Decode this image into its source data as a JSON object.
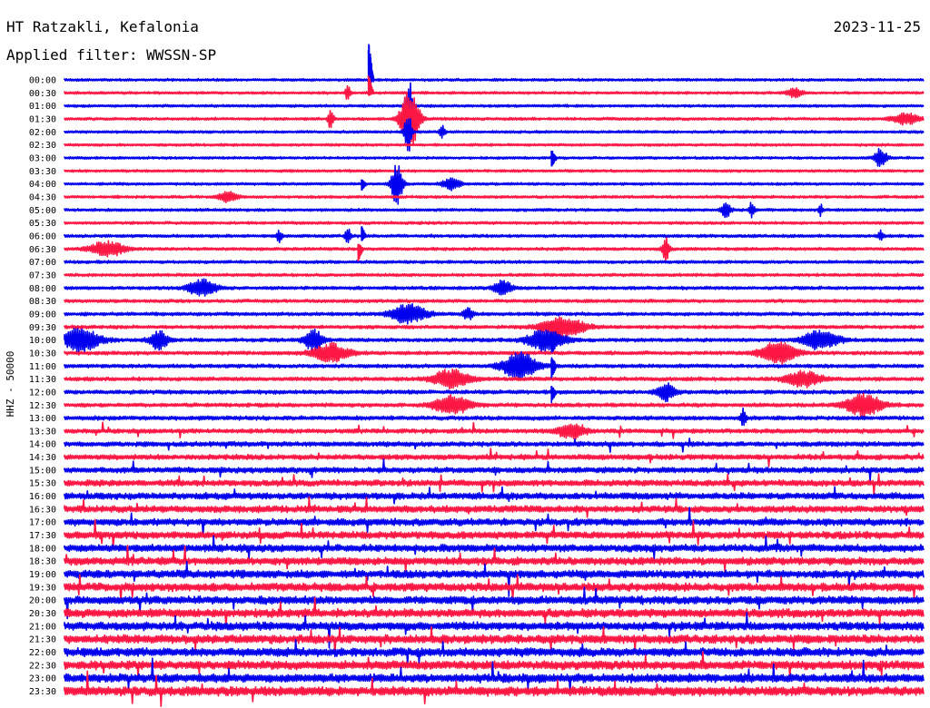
{
  "header": {
    "station": "HT Ratzakli, Kefalonia",
    "date": "2023-11-25",
    "filter": "Applied filter: WWSSN-SP"
  },
  "chart_data": {
    "type": "line",
    "title": "HT Ratzakli, Kefalonia",
    "ylabel": "HHZ - 50000",
    "row_labels": [
      "00:00",
      "00:30",
      "01:00",
      "01:30",
      "02:00",
      "02:30",
      "03:00",
      "03:30",
      "04:00",
      "04:30",
      "05:00",
      "05:30",
      "06:00",
      "06:30",
      "07:00",
      "07:30",
      "08:00",
      "08:30",
      "09:00",
      "09:30",
      "10:00",
      "10:30",
      "11:00",
      "11:30",
      "12:00",
      "12:30",
      "13:00",
      "13:30",
      "14:00",
      "14:30",
      "15:00",
      "15:30",
      "16:00",
      "16:30",
      "17:00",
      "17:30",
      "18:00",
      "18:30",
      "19:00",
      "19:30",
      "20:00",
      "20:30",
      "21:00",
      "21:30",
      "22:00",
      "22:30",
      "23:00",
      "23:30"
    ],
    "series_colors": [
      "#0000ee",
      "#ff1744"
    ],
    "noise_level": [
      1.2,
      1.2,
      1.2,
      1.3,
      1.2,
      1.2,
      1.2,
      1.2,
      1.2,
      1.3,
      1.3,
      1.3,
      1.4,
      1.4,
      1.4,
      1.4,
      1.5,
      1.5,
      1.6,
      1.6,
      1.7,
      1.7,
      1.7,
      1.8,
      1.8,
      1.8,
      1.9,
      2.0,
      2.2,
      2.4,
      2.6,
      2.8,
      3.0,
      3.1,
      3.2,
      3.3,
      3.4,
      3.5,
      3.6,
      3.7,
      3.7,
      3.8,
      3.8,
      3.9,
      3.9,
      4.0,
      4.0,
      4.2
    ],
    "events": [
      {
        "row": 1,
        "t": 0.33,
        "amp": 8,
        "dur": 0.003
      },
      {
        "row": 1,
        "t": 0.85,
        "amp": 5,
        "dur": 0.008
      },
      {
        "row": 3,
        "t": 0.98,
        "amp": 6,
        "dur": 0.015
      },
      {
        "row": 3,
        "t": 0.31,
        "amp": 12,
        "dur": 0.003
      },
      {
        "row": 4,
        "t": 0.4,
        "amp": 25,
        "dur": 0.004
      },
      {
        "row": 3,
        "t": 0.402,
        "amp": 35,
        "dur": 0.01
      },
      {
        "row": 2,
        "t": 0.401,
        "amp": 32,
        "dur": 0.004
      },
      {
        "row": 4,
        "t": 0.44,
        "amp": 6,
        "dur": 0.003
      },
      {
        "row": 6,
        "t": 0.95,
        "amp": 10,
        "dur": 0.007
      },
      {
        "row": 8,
        "t": 0.387,
        "amp": 24,
        "dur": 0.006
      },
      {
        "row": 8,
        "t": 0.45,
        "amp": 6,
        "dur": 0.01
      },
      {
        "row": 9,
        "t": 0.19,
        "amp": 6,
        "dur": 0.01
      },
      {
        "row": 10,
        "t": 0.77,
        "amp": 8,
        "dur": 0.005
      },
      {
        "row": 10,
        "t": 0.8,
        "amp": 9,
        "dur": 0.003
      },
      {
        "row": 10,
        "t": 0.88,
        "amp": 7,
        "dur": 0.002
      },
      {
        "row": 12,
        "t": 0.25,
        "amp": 6,
        "dur": 0.003
      },
      {
        "row": 12,
        "t": 0.33,
        "amp": 8,
        "dur": 0.003
      },
      {
        "row": 12,
        "t": 0.95,
        "amp": 6,
        "dur": 0.003
      },
      {
        "row": 13,
        "t": 0.05,
        "amp": 8,
        "dur": 0.02
      },
      {
        "row": 13,
        "t": 0.7,
        "amp": 12,
        "dur": 0.004
      },
      {
        "row": 16,
        "t": 0.16,
        "amp": 10,
        "dur": 0.015
      },
      {
        "row": 16,
        "t": 0.51,
        "amp": 8,
        "dur": 0.01
      },
      {
        "row": 18,
        "t": 0.4,
        "amp": 10,
        "dur": 0.02
      },
      {
        "row": 18,
        "t": 0.47,
        "amp": 6,
        "dur": 0.006
      },
      {
        "row": 20,
        "t": 0.02,
        "amp": 13,
        "dur": 0.02
      },
      {
        "row": 20,
        "t": 0.11,
        "amp": 10,
        "dur": 0.01
      },
      {
        "row": 20,
        "t": 0.29,
        "amp": 12,
        "dur": 0.01
      },
      {
        "row": 20,
        "t": 0.88,
        "amp": 10,
        "dur": 0.02
      },
      {
        "row": 19,
        "t": 0.58,
        "amp": 10,
        "dur": 0.025
      },
      {
        "row": 21,
        "t": 0.31,
        "amp": 10,
        "dur": 0.02
      },
      {
        "row": 21,
        "t": 0.83,
        "amp": 12,
        "dur": 0.02
      },
      {
        "row": 20,
        "t": 0.56,
        "amp": 12,
        "dur": 0.02
      },
      {
        "row": 22,
        "t": 0.53,
        "amp": 14,
        "dur": 0.02
      },
      {
        "row": 23,
        "t": 0.45,
        "amp": 10,
        "dur": 0.02
      },
      {
        "row": 23,
        "t": 0.86,
        "amp": 8,
        "dur": 0.02
      },
      {
        "row": 24,
        "t": 0.7,
        "amp": 9,
        "dur": 0.01
      },
      {
        "row": 25,
        "t": 0.45,
        "amp": 10,
        "dur": 0.02
      },
      {
        "row": 25,
        "t": 0.93,
        "amp": 12,
        "dur": 0.02
      },
      {
        "row": 26,
        "t": 0.79,
        "amp": 10,
        "dur": 0.003
      },
      {
        "row": 27,
        "t": 0.59,
        "amp": 8,
        "dur": 0.015
      }
    ],
    "spikes": [
      {
        "row": 0,
        "t": 0.357,
        "up": 45,
        "down": 8
      },
      {
        "row": 1,
        "t": 0.357,
        "up": 22,
        "down": 4
      },
      {
        "row": 8,
        "t": 0.349,
        "up": 6,
        "down": 8
      },
      {
        "row": 13,
        "t": 0.345,
        "up": 8,
        "down": 14
      },
      {
        "row": 12,
        "t": 0.349,
        "up": 12,
        "down": 6
      },
      {
        "row": 6,
        "t": 0.57,
        "up": 10,
        "down": 12
      },
      {
        "row": 20,
        "t": 0.57,
        "up": 10,
        "down": 18
      },
      {
        "row": 19,
        "t": 0.57,
        "up": 8,
        "down": 6
      },
      {
        "row": 22,
        "t": 0.57,
        "up": 12,
        "down": 14
      },
      {
        "row": 24,
        "t": 0.57,
        "up": 8,
        "down": 14
      }
    ]
  }
}
